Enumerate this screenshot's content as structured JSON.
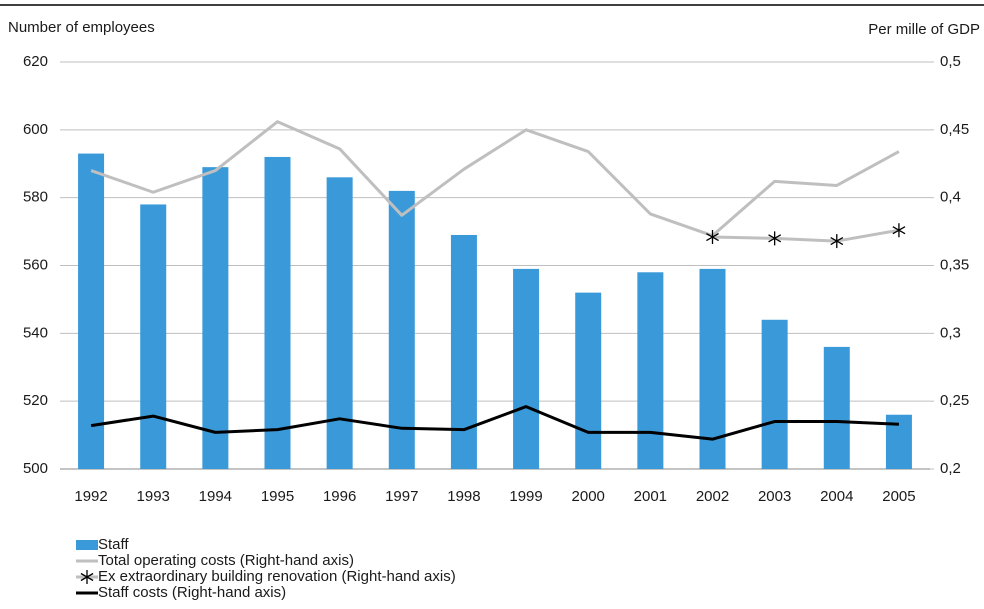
{
  "chart_data": {
    "type": "bar",
    "y_label": "Number of employees",
    "y2_label": "Per mille of GDP",
    "categories": [
      "1992",
      "1993",
      "1994",
      "1995",
      "1996",
      "1997",
      "1998",
      "1999",
      "2000",
      "2001",
      "2002",
      "2003",
      "2004",
      "2005"
    ],
    "series": [
      {
        "name": "Staff",
        "type": "bar",
        "color": "#3a9ad9",
        "values": [
          593,
          578,
          589,
          592,
          586,
          582,
          569,
          559,
          552,
          558,
          559,
          544,
          536,
          516
        ]
      },
      {
        "name": "Total operating costs (Right-hand axis)",
        "type": "line",
        "axis": "y2",
        "color": "#bfbfbf",
        "values": [
          0.42,
          0.404,
          0.42,
          0.456,
          0.436,
          0.387,
          0.421,
          0.45,
          0.434,
          0.388,
          0.372,
          0.412,
          0.409,
          0.434
        ]
      },
      {
        "name": "Ex extraordinary building renovation (Right-hand axis)",
        "type": "line",
        "axis": "y2",
        "color": "#bfbfbf",
        "marker": "asterisk",
        "values": [
          null,
          null,
          null,
          null,
          null,
          null,
          null,
          null,
          null,
          null,
          0.371,
          0.37,
          0.368,
          0.376
        ]
      },
      {
        "name": "Staff costs (Right-hand axis)",
        "type": "line",
        "axis": "y2",
        "color": "#000000",
        "values": [
          0.232,
          0.239,
          0.227,
          0.229,
          0.237,
          0.23,
          0.229,
          0.246,
          0.227,
          0.227,
          0.222,
          0.235,
          0.235,
          0.233
        ]
      }
    ],
    "ylim": [
      500,
      620
    ],
    "yticks": [
      500,
      520,
      540,
      560,
      580,
      600,
      620
    ],
    "y2lim": [
      0.2,
      0.5
    ],
    "y2ticks": [
      {
        "value": 0.2,
        "label": "0,2"
      },
      {
        "value": 0.25,
        "label": "0,25"
      },
      {
        "value": 0.3,
        "label": "0,3"
      },
      {
        "value": 0.35,
        "label": "0,35"
      },
      {
        "value": 0.4,
        "label": "0,4"
      },
      {
        "value": 0.45,
        "label": "0,45"
      },
      {
        "value": 0.5,
        "label": "0,5"
      }
    ],
    "grid": true,
    "legend": "bottom"
  }
}
